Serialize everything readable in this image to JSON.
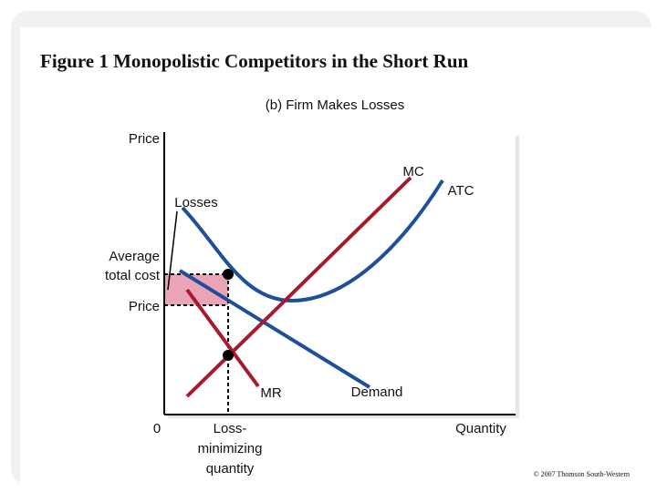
{
  "header": {
    "title": "Figure 1 Monopolistic Competitors in the Short Run",
    "subtitle": "(b) Firm Makes Losses"
  },
  "axes": {
    "y_label": "Price",
    "x_label": "Quantity",
    "origin": "0"
  },
  "y_markers": {
    "average_total_cost": [
      "Average",
      "total cost"
    ],
    "price": "Price"
  },
  "x_markers": {
    "loss_minimizing_quantity": [
      "Loss-",
      "minimizing",
      "quantity"
    ]
  },
  "curves": {
    "mc": "MC",
    "atc": "ATC",
    "mr": "MR",
    "demand": "Demand"
  },
  "annotations": {
    "losses": "Losses"
  },
  "footer": {
    "copyright": "© 2007 Thomson South-Western"
  }
}
